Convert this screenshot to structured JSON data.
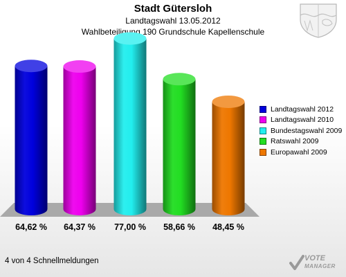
{
  "header": {
    "title": "Stadt Gütersloh",
    "subtitle_line1": "Landtagswahl 13.05.2012",
    "subtitle_line2": "Wahlbeteiligung 190 Grundschule Kapellenschule"
  },
  "footer": {
    "text": "4 von 4 Schnellmeldungen"
  },
  "brand": {
    "line1": "VOTE",
    "line2": "MANAGER"
  },
  "chart_data": {
    "type": "bar",
    "title": "Stadt Gütersloh",
    "subtitle": "Landtagswahl 13.05.2012 — Wahlbeteiligung 190 Grundschule Kapellenschule",
    "categories": [
      "Landtagswahl 2012",
      "Landtagswahl 2010",
      "Bundestagswahl 2009",
      "Ratswahl 2009",
      "Europawahl 2009"
    ],
    "values": [
      64.62,
      64.37,
      77.0,
      58.66,
      48.45
    ],
    "value_labels": [
      "64,62 %",
      "64,37 %",
      "77,00 %",
      "58,66 %",
      "48,45 %"
    ],
    "colors": [
      "#0000dd",
      "#ee00ee",
      "#22eeee",
      "#22dd22",
      "#ee7700"
    ],
    "ylim": [
      0,
      100
    ],
    "legend": "right",
    "grid": false
  }
}
